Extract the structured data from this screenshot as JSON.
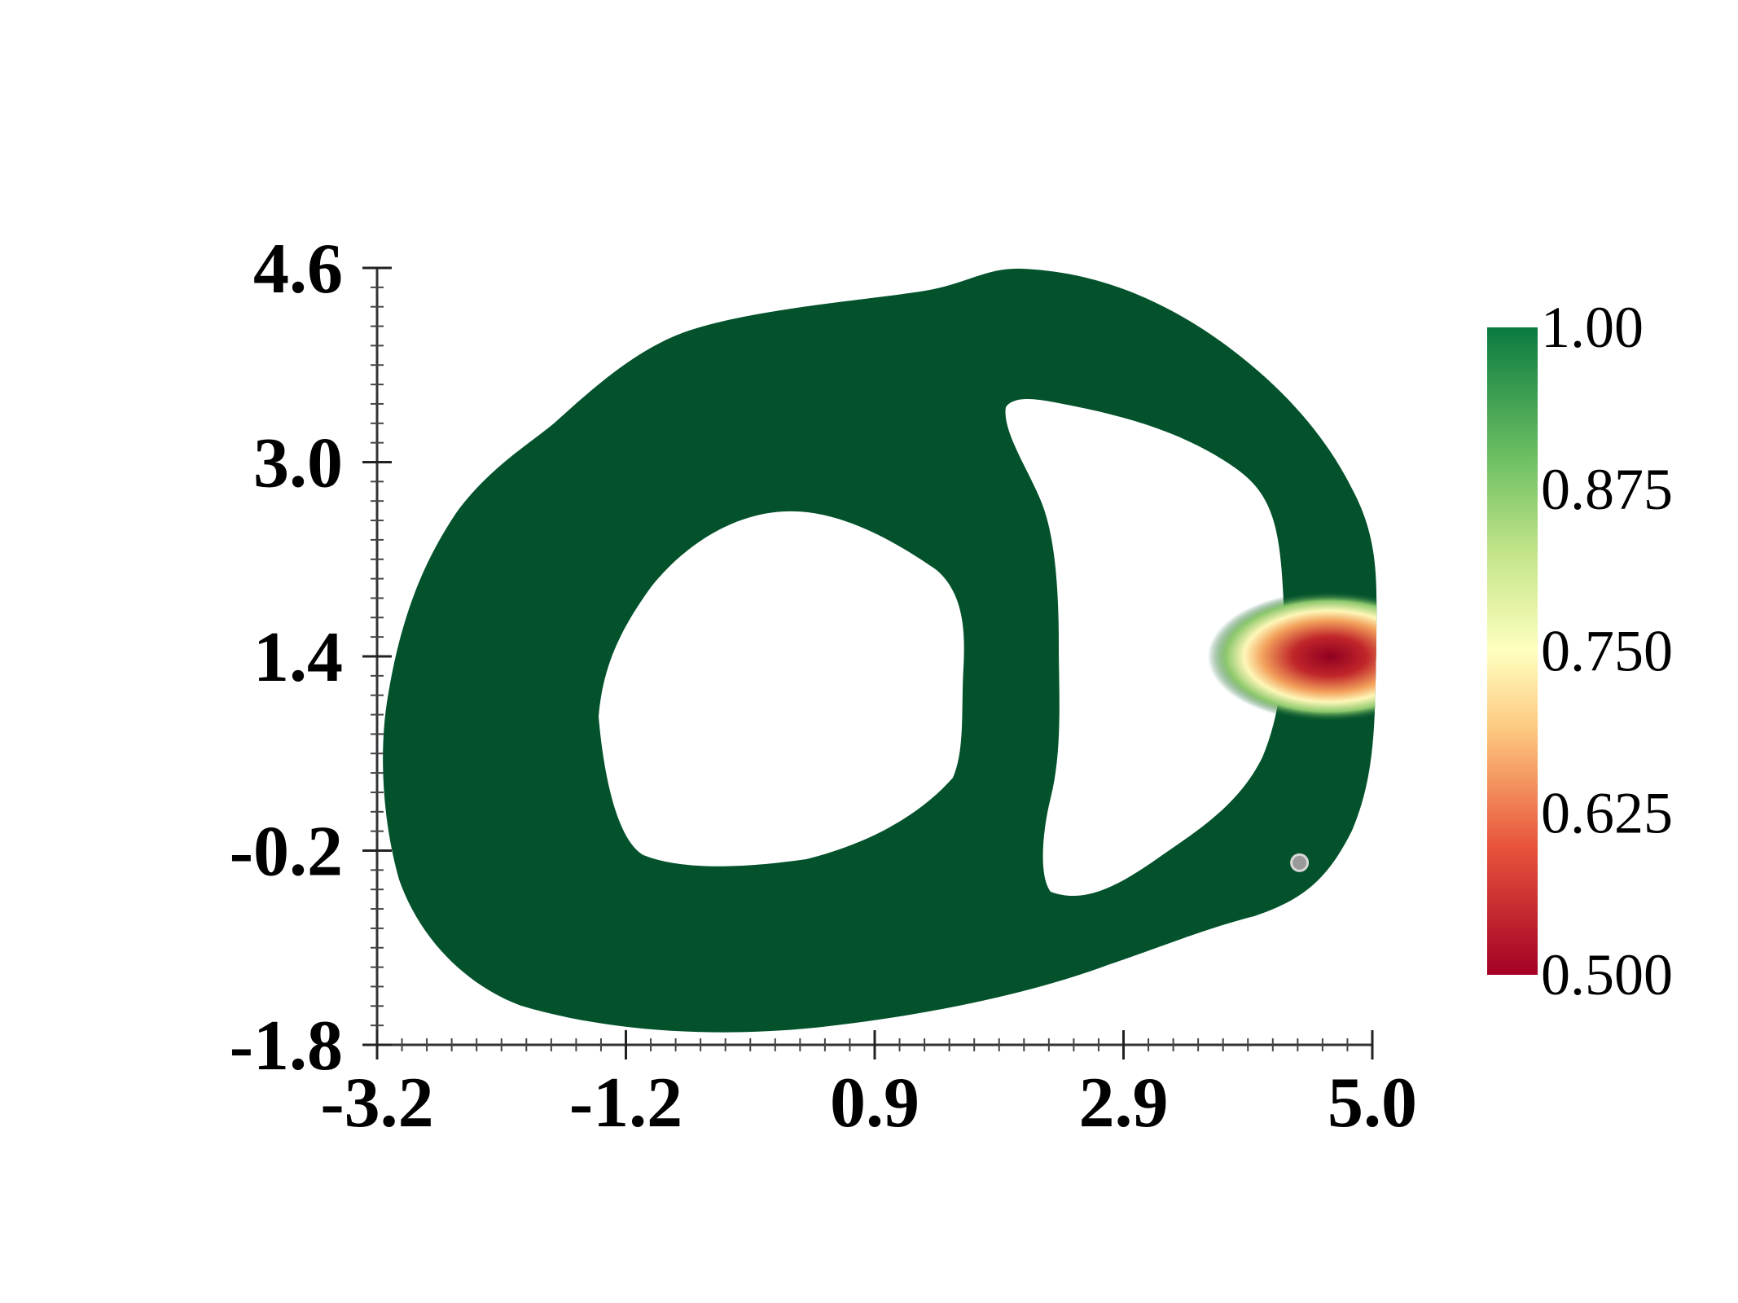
{
  "chart_data": {
    "type": "heatmap",
    "title": "",
    "xlabel": "",
    "ylabel": "",
    "xlim": [
      -3.2,
      5.0
    ],
    "ylim": [
      -1.8,
      4.6
    ],
    "x_ticks": [
      "-3.2",
      "-1.2",
      "0.9",
      "2.9",
      "5.0"
    ],
    "y_ticks": [
      "4.6",
      "3.0",
      "1.4",
      "-0.2",
      "-1.8"
    ],
    "colorbar": {
      "range": [
        0.5,
        1.0
      ],
      "labels": [
        "1.00",
        "0.875",
        "0.750",
        "0.625",
        "0.500"
      ],
      "placement": "right"
    },
    "field": {
      "base_value": 1.0,
      "min_value": 0.5,
      "min_location": [
        4.65,
        1.4
      ],
      "description_values": "uniform 1.00 over domain with localized dip to 0.500 on right wall"
    },
    "marker_point": [
      4.4,
      -0.3
    ],
    "colors": {
      "domain": "#03522c",
      "low": "#a50026",
      "mid": "#ffffbf",
      "high": "#0a7a40"
    }
  }
}
